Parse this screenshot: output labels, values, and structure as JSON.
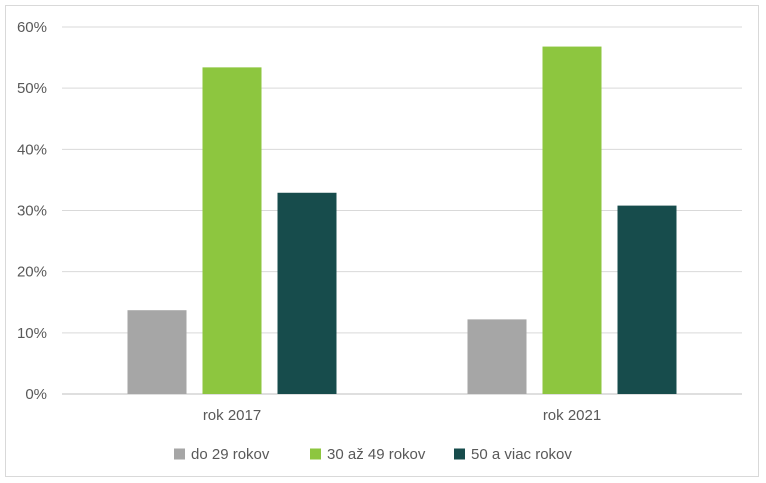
{
  "chart_data": {
    "type": "bar",
    "title": "",
    "xlabel": "",
    "ylabel": "",
    "categories": [
      "rok 2017",
      "rok 2021"
    ],
    "series": [
      {
        "name": "do 29 rokov",
        "color": "#a6a6a6",
        "values": [
          0.137,
          0.122
        ]
      },
      {
        "name": "30 až 49 rokov",
        "color": "#8dc63f",
        "values": [
          0.534,
          0.568
        ]
      },
      {
        "name": "50 a viac rokov",
        "color": "#174c4c",
        "values": [
          0.329,
          0.308
        ]
      }
    ],
    "ylim": [
      0,
      0.6
    ],
    "yticks": [
      {
        "value": 0,
        "label": "0%"
      },
      {
        "value": 0.1,
        "label": "10%"
      },
      {
        "value": 0.2,
        "label": "20%"
      },
      {
        "value": 0.3,
        "label": "30%"
      },
      {
        "value": 0.4,
        "label": "40%"
      },
      {
        "value": 0.5,
        "label": "50%"
      },
      {
        "value": 0.6,
        "label": "60%"
      }
    ],
    "grid": true,
    "legend": "bottom"
  }
}
